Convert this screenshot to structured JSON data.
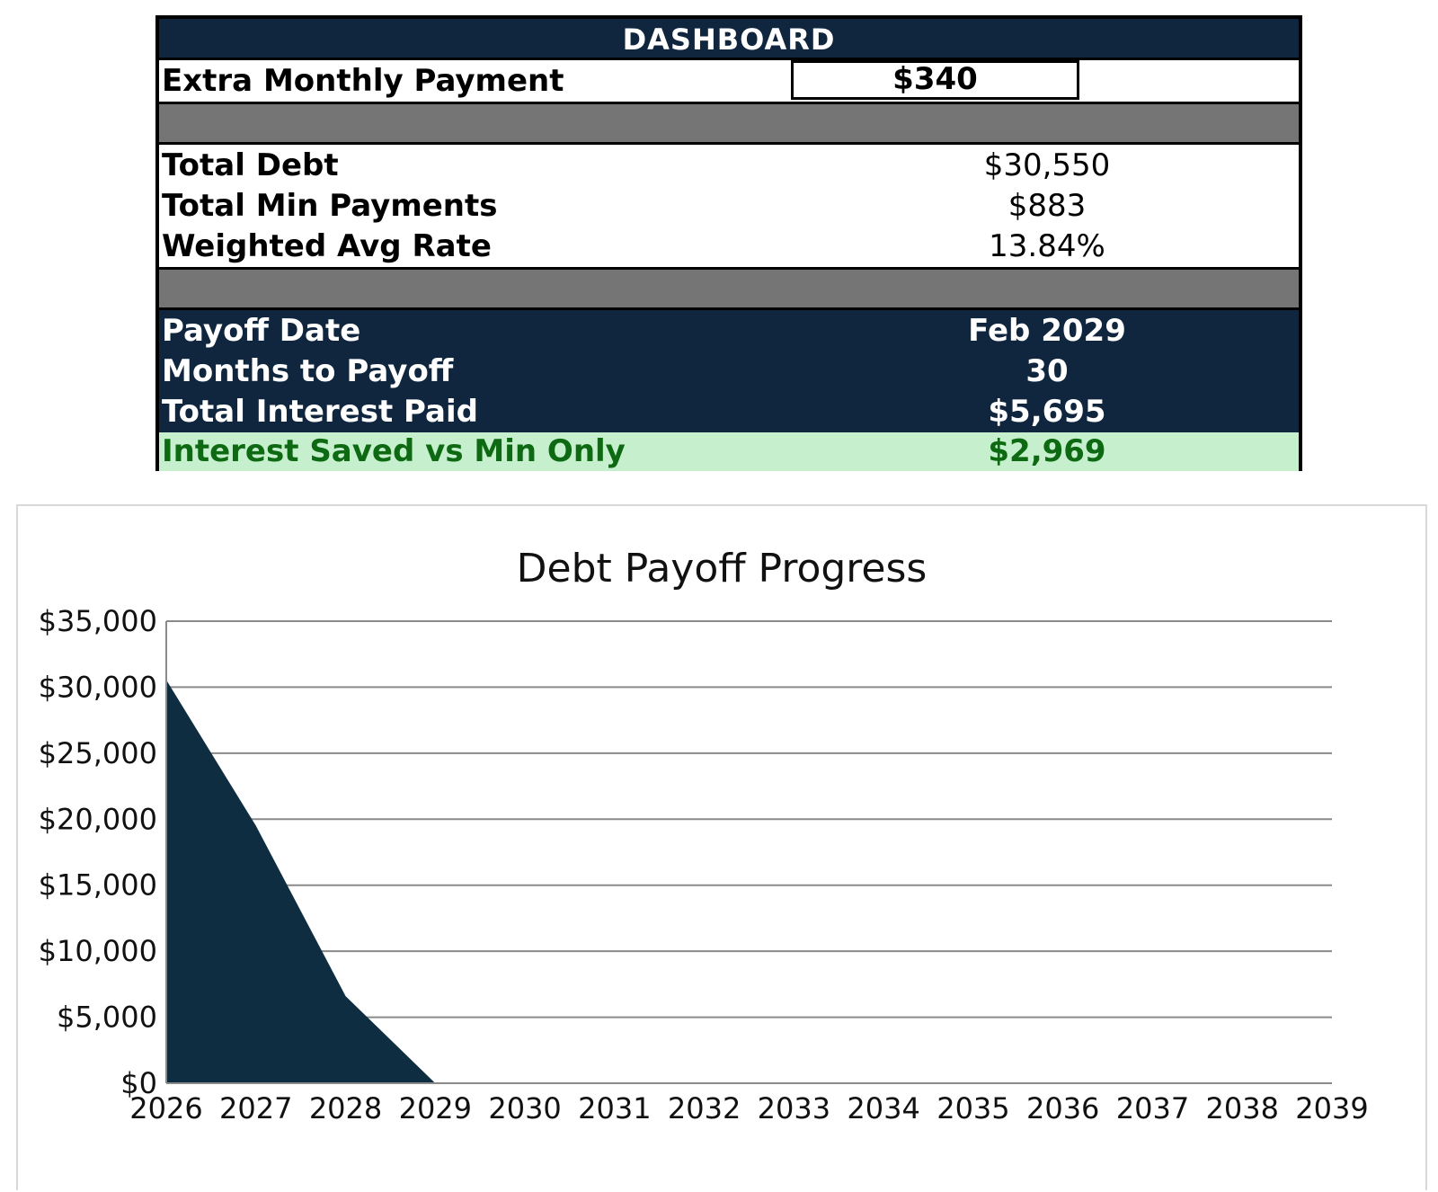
{
  "dashboard": {
    "title": "DASHBOARD",
    "extra_payment": {
      "label": "Extra Monthly Payment",
      "value": "$340"
    },
    "stats": [
      {
        "label": "Total Debt",
        "value": "$30,550"
      },
      {
        "label": "Total Min Payments",
        "value": "$883"
      },
      {
        "label": "Weighted Avg Rate",
        "value": "13.84%"
      }
    ],
    "results": [
      {
        "label": "Payoff Date",
        "value": "Feb 2029"
      },
      {
        "label": "Months to Payoff",
        "value": "30"
      },
      {
        "label": "Total Interest Paid",
        "value": "$5,695"
      }
    ],
    "interest_saved": {
      "label": "Interest Saved vs Min Only",
      "value": "$2,969"
    },
    "colors": {
      "header_bg": "#10263f",
      "separator_gray": "#757575",
      "saved_bg": "#c6efce",
      "saved_text": "#0d6a12"
    }
  },
  "chart_data": {
    "type": "area",
    "title": "Debt Payoff Progress",
    "xlabel": "",
    "ylabel": "",
    "x": [
      2026,
      2027,
      2028,
      2029,
      2030,
      2031,
      2032,
      2033,
      2034,
      2035,
      2036,
      2037,
      2038,
      2039
    ],
    "x_tick_labels": [
      "2026",
      "2027",
      "2028",
      "2029",
      "2030",
      "2031",
      "2032",
      "2033",
      "2034",
      "2035",
      "2036",
      "2037",
      "2038",
      "2039"
    ],
    "y_tick_labels": [
      "$0",
      "$5,000",
      "$10,000",
      "$15,000",
      "$20,000",
      "$25,000",
      "$30,000",
      "$35,000"
    ],
    "y_ticks": [
      0,
      5000,
      10000,
      15000,
      20000,
      25000,
      30000,
      35000
    ],
    "ylim": [
      0,
      35000
    ],
    "xlim": [
      2026,
      2039
    ],
    "series": [
      {
        "points": [
          [
            2026,
            30550
          ],
          [
            2027,
            19500
          ],
          [
            2028,
            6600
          ],
          [
            2029,
            0
          ]
        ],
        "color": "#0f2d40"
      }
    ],
    "grid": "horizontal",
    "legend": "none"
  }
}
